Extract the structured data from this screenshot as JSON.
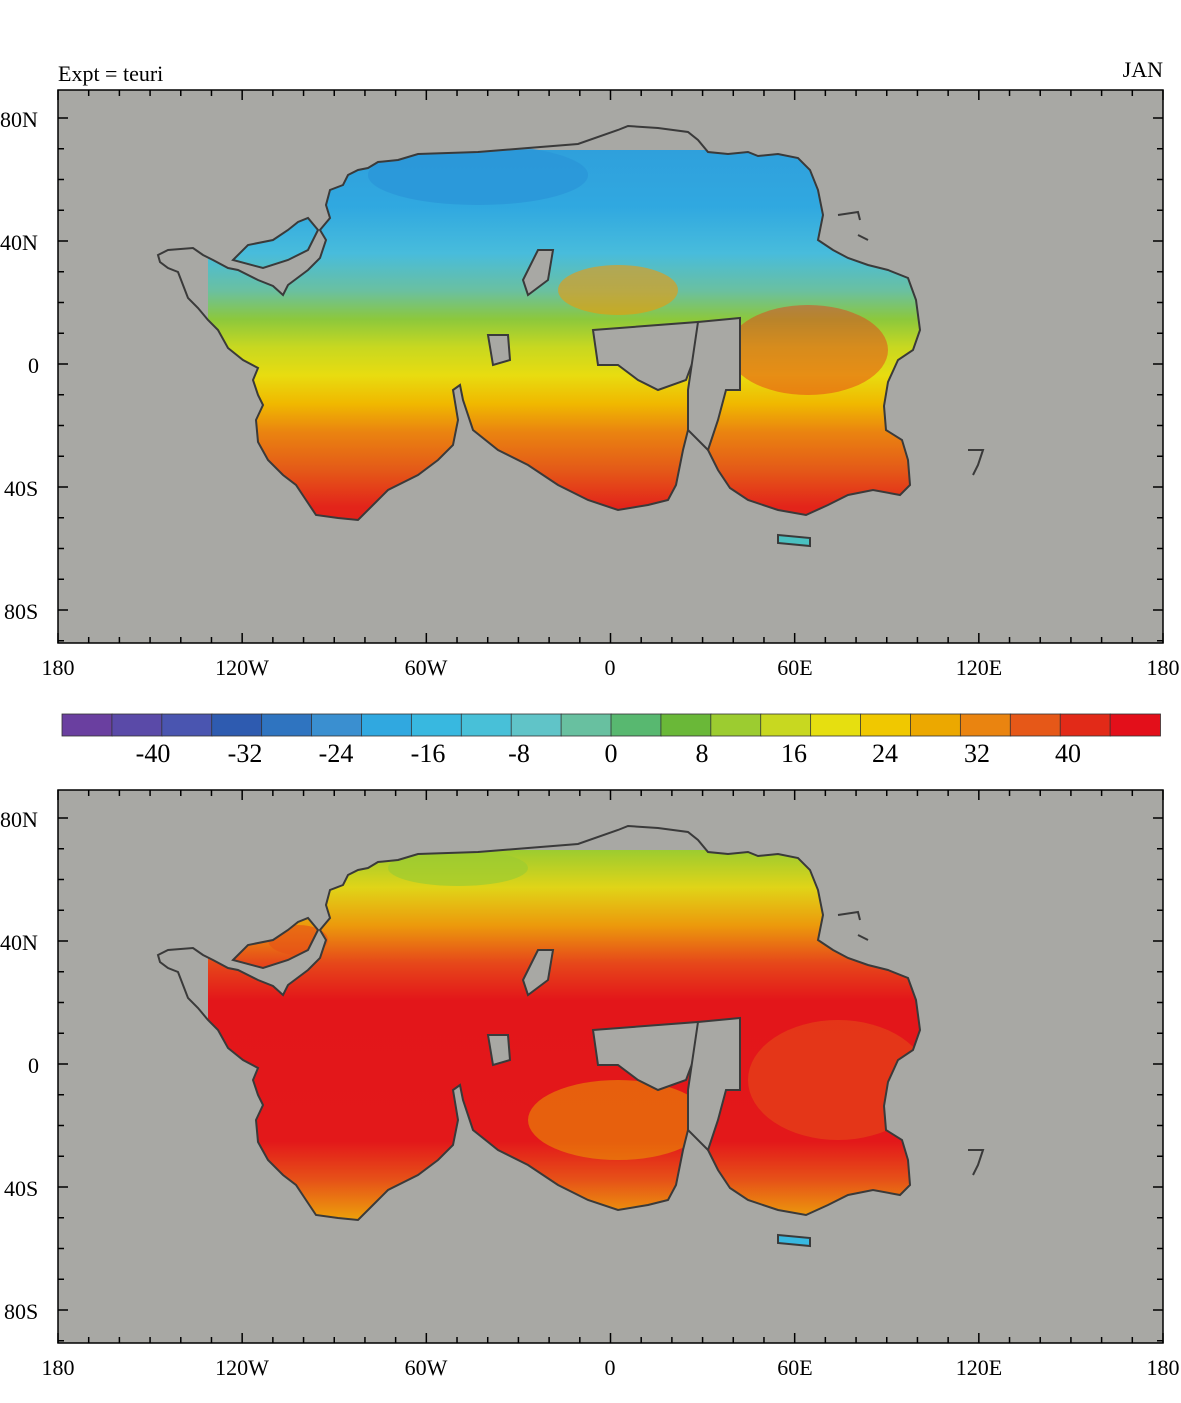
{
  "header": {
    "left": "Expt = teuri",
    "right": "JAN"
  },
  "axes": {
    "lat_labels": [
      "80N",
      "40N",
      "0",
      "40S",
      "80S"
    ],
    "lon_labels": [
      "180",
      "120W",
      "60W",
      "0",
      "60E",
      "120E",
      "180"
    ]
  },
  "colorbar": {
    "labels": [
      "-40",
      "-32",
      "-24",
      "-16",
      "-8",
      "0",
      "8",
      "16",
      "24",
      "32",
      "40"
    ],
    "colors": [
      "#6a3fa0",
      "#5a4aa8",
      "#4a55b0",
      "#2e5bb0",
      "#2f74c0",
      "#3a8fd0",
      "#30a8e0",
      "#38b8e0",
      "#48c0d8",
      "#60c4c8",
      "#68c0a0",
      "#58b870",
      "#6ab838",
      "#9ccc30",
      "#c8d820",
      "#e6df10",
      "#f0c800",
      "#eca800",
      "#ea8410",
      "#e65818",
      "#e22a18",
      "#e30f1a"
    ]
  },
  "maps": [
    {
      "id": "top",
      "description_colors": {
        "ocean": "#a8a8a4",
        "land_outline": "#3a3a3a"
      }
    },
    {
      "id": "bottom",
      "description_colors": {
        "ocean": "#a8a8a4",
        "land_outline": "#3a3a3a"
      }
    }
  ]
}
